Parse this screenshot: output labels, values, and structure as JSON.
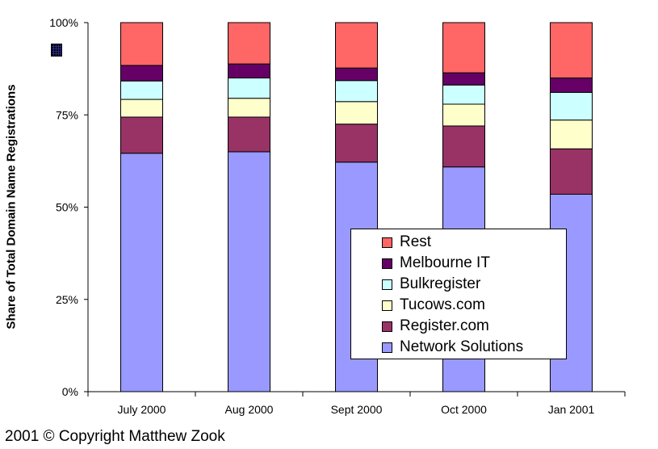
{
  "chart_data": {
    "type": "bar",
    "stacked": true,
    "categories": [
      "July 2000",
      "Aug 2000",
      "Sept 2000",
      "Oct 2000",
      "Jan 2001"
    ],
    "ylabel": "Share of Total Domain Name Registrations",
    "ylim": [
      0,
      100
    ],
    "yticks": [
      0,
      25,
      50,
      75,
      100
    ],
    "ytick_labels": [
      "0%",
      "25%",
      "50%",
      "75%",
      "100%"
    ],
    "grid": false,
    "legend_position": "lower-right inside plot",
    "series": [
      {
        "name": "Network Solutions",
        "color": "#9999ff",
        "values": [
          64.6,
          65.0,
          62.2,
          60.9,
          53.5
        ]
      },
      {
        "name": "Register.com",
        "color": "#993366",
        "values": [
          9.8,
          9.4,
          10.3,
          11.1,
          12.3
        ]
      },
      {
        "name": "Tucows.com",
        "color": "#ffffcc",
        "values": [
          4.8,
          5.1,
          6.1,
          5.9,
          7.8
        ]
      },
      {
        "name": "Bulkregister",
        "color": "#ccffff",
        "values": [
          5.0,
          5.5,
          5.7,
          5.2,
          7.5
        ]
      },
      {
        "name": "Melbourne IT",
        "color": "#660066",
        "values": [
          4.2,
          3.8,
          3.4,
          3.3,
          3.9
        ]
      },
      {
        "name": "Rest",
        "color": "#ff6666",
        "values": [
          11.6,
          11.2,
          12.3,
          13.6,
          15.0
        ]
      }
    ]
  },
  "footer": {
    "copyright": "2001 © Copyright Matthew Zook"
  }
}
